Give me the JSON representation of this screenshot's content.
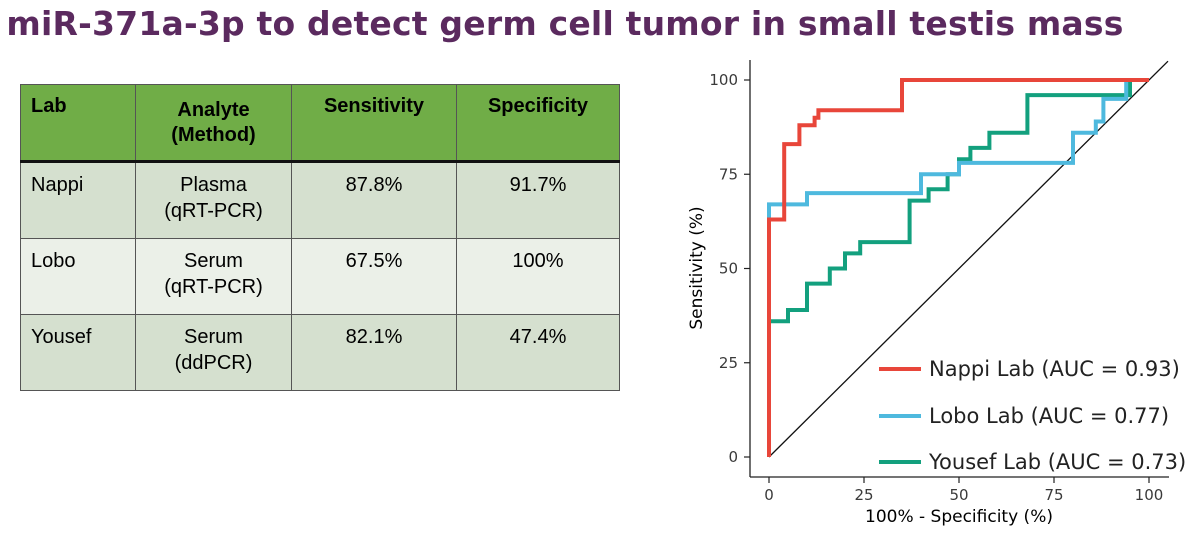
{
  "title": "miR-371a-3p to detect germ cell tumor in small testis mass",
  "table": {
    "headers": {
      "lab": "Lab",
      "analyte": "Analyte",
      "method": "(Method)",
      "sensitivity": "Sensitivity",
      "specificity": "Specificity"
    },
    "rows": [
      {
        "lab": "Nappi",
        "analyte": "Plasma",
        "method": "(qRT-PCR)",
        "sensitivity": "87.8%",
        "specificity": "91.7%"
      },
      {
        "lab": "Lobo",
        "analyte": "Serum",
        "method": "(qRT-PCR)",
        "sensitivity": "67.5%",
        "specificity": "100%"
      },
      {
        "lab": "Yousef",
        "analyte": "Serum",
        "method": "(ddPCR)",
        "sensitivity": "82.1%",
        "specificity": "47.4%"
      }
    ]
  },
  "chart_data": {
    "type": "line",
    "xlabel": "100% - Specificity (%)",
    "ylabel": "Sensitivity (%)",
    "xlim": [
      0,
      100
    ],
    "ylim": [
      0,
      100
    ],
    "xticks": [
      "0",
      "25",
      "50",
      "75",
      "100"
    ],
    "yticks": [
      "0",
      "25",
      "50",
      "75",
      "100"
    ],
    "grid": false,
    "legend_position": "bottom-right",
    "diagonal_reference": true,
    "series": [
      {
        "name": "Nappi Lab (AUC = 0.93)",
        "color": "#e8463a",
        "x": [
          0,
          0,
          4,
          4,
          8,
          8,
          9,
          9,
          12,
          12,
          13,
          13,
          35,
          35,
          95,
          95,
          100
        ],
        "y": [
          0,
          63,
          63,
          83,
          83,
          88,
          88,
          88,
          88,
          90,
          90,
          92,
          92,
          100,
          100,
          100,
          100
        ]
      },
      {
        "name": "Lobo Lab (AUC = 0.77)",
        "color": "#4eb9de",
        "x": [
          0,
          0,
          10,
          10,
          40,
          40,
          50,
          50,
          79,
          79,
          80,
          80,
          84,
          84,
          86,
          86,
          88,
          88,
          94,
          94,
          100
        ],
        "y": [
          0,
          67,
          67,
          70,
          70,
          75,
          75,
          78,
          78,
          78,
          78,
          86,
          86,
          86,
          86,
          89,
          89,
          95,
          95,
          100,
          100
        ]
      },
      {
        "name": "Yousef Lab (AUC = 0.73)",
        "color": "#13a07e",
        "x": [
          0,
          0,
          5,
          5,
          10,
          10,
          16,
          16,
          20,
          20,
          24,
          24,
          30,
          30,
          37,
          37,
          42,
          42,
          47,
          47,
          50,
          50,
          53,
          53,
          58,
          58,
          68,
          68,
          95,
          95,
          100
        ],
        "y": [
          0,
          36,
          36,
          39,
          39,
          46,
          46,
          50,
          50,
          54,
          54,
          57,
          57,
          57,
          57,
          68,
          68,
          71,
          71,
          75,
          75,
          79,
          79,
          82,
          82,
          86,
          86,
          96,
          96,
          100,
          100
        ]
      }
    ]
  }
}
